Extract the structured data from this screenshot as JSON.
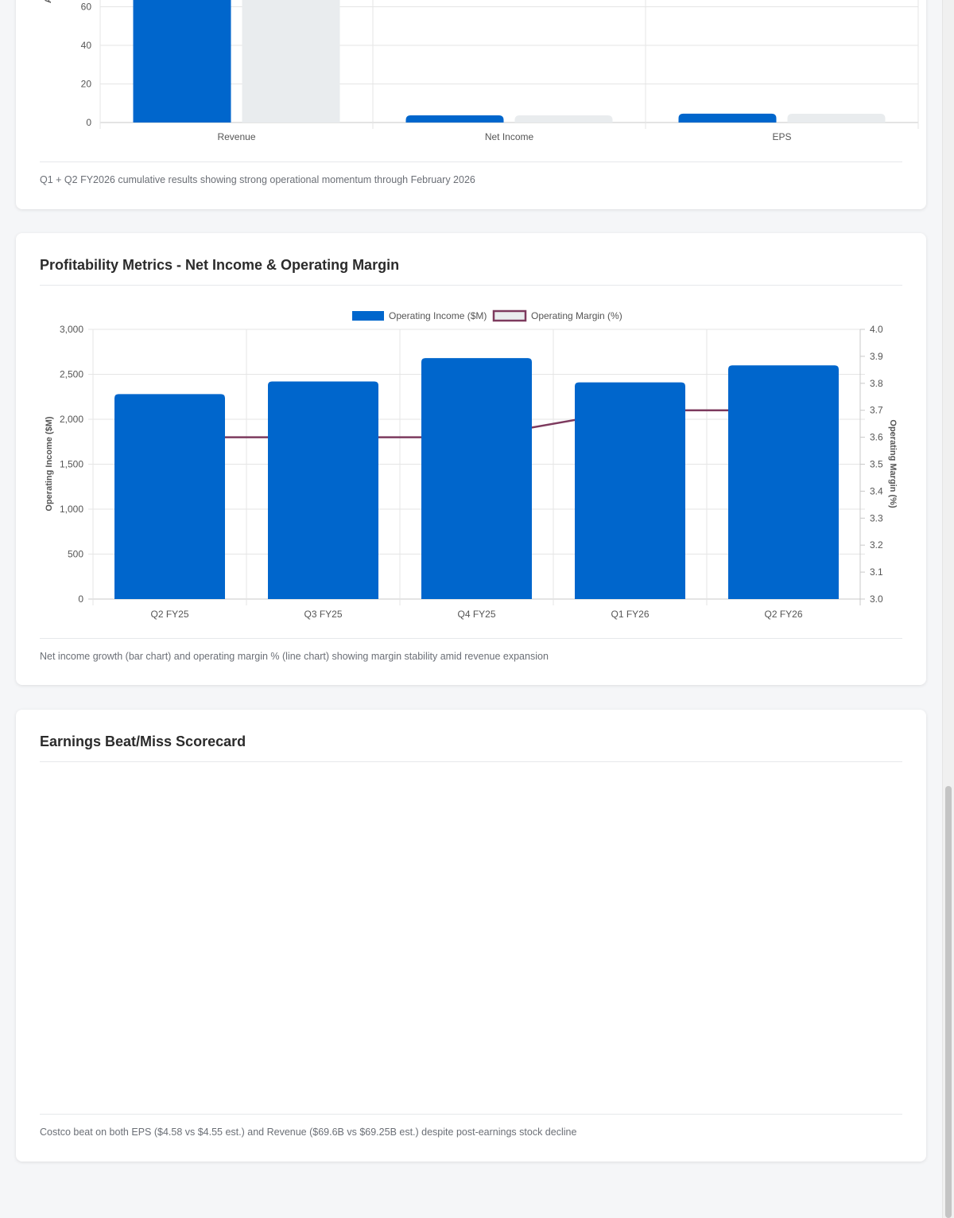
{
  "colors": {
    "primary": "#0066cc",
    "secondary": "#e9ecee",
    "margin_line": "#7d3a5e"
  },
  "cumulative_card": {
    "caption": "Q1 + Q2 FY2026 cumulative results showing strong operational momentum through February 2026"
  },
  "profitability_card": {
    "title": "Profitability Metrics - Net Income & Operating Margin",
    "caption": "Net income growth (bar chart) and operating margin % (line chart) showing margin stability amid revenue expansion"
  },
  "scorecard_card": {
    "title": "Earnings Beat/Miss Scorecard",
    "caption": "Costco beat on both EPS ($4.58 vs $4.55 est.) and Revenue ($69.6B vs $69.25B est.) despite post-earnings stock decline"
  },
  "chart_data": [
    {
      "type": "bar",
      "categories": [
        "Revenue",
        "Net Income",
        "EPS"
      ],
      "series": [
        {
          "values": [
            69.6,
            2.0,
            4.58
          ],
          "color": "#0066cc"
        },
        {
          "values": [
            69.25,
            1.9,
            4.55
          ],
          "color": "#e9ecee"
        }
      ],
      "yticks": [
        "0",
        "20",
        "40",
        "60"
      ],
      "ylim": [
        0,
        70
      ],
      "ylabel_partial": "A",
      "grid": true
    },
    {
      "type": "bar",
      "categories": [
        "Q2 FY25",
        "Q3 FY25",
        "Q4 FY25",
        "Q1 FY26",
        "Q2 FY26"
      ],
      "series": [
        {
          "name": "Operating Income ($M)",
          "type": "bar",
          "axis": "left",
          "color": "#0066cc",
          "values": [
            2280,
            2420,
            2680,
            2410,
            2600
          ]
        },
        {
          "name": "Operating Margin (%)",
          "type": "line",
          "axis": "right",
          "color": "#7d3a5e",
          "values": [
            3.6,
            3.6,
            3.6,
            3.7,
            3.7
          ]
        }
      ],
      "ylabel": "Operating Income ($M)",
      "y2label": "Operating Margin (%)",
      "ylim": [
        0,
        3000
      ],
      "y2lim": [
        3.0,
        4.0
      ],
      "yticks": [
        "0",
        "500",
        "1,000",
        "1,500",
        "2,000",
        "2,500",
        "3,000"
      ],
      "y2ticks": [
        "3.0",
        "3.1",
        "3.2",
        "3.3",
        "3.4",
        "3.5",
        "3.6",
        "3.7",
        "3.8",
        "3.9",
        "4.0"
      ],
      "legend": "top-center",
      "grid": true
    }
  ]
}
